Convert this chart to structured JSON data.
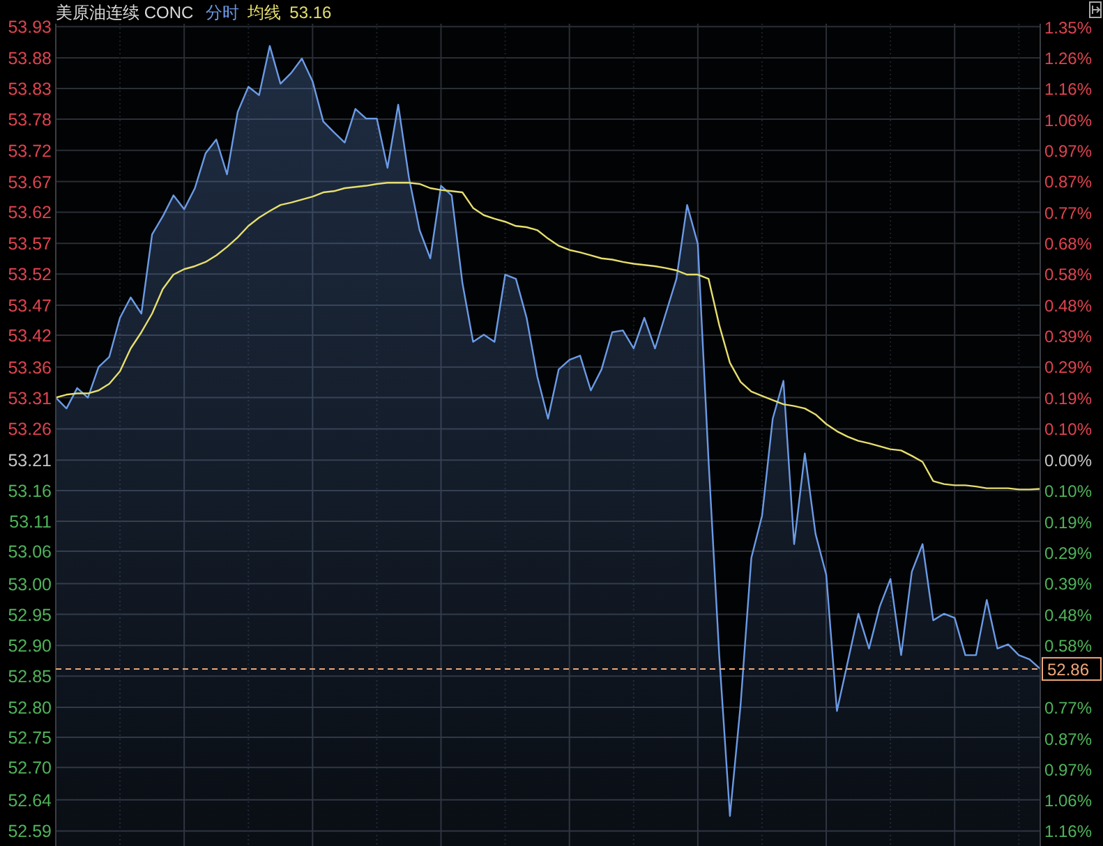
{
  "chart_data": {
    "type": "line",
    "title": "美原油连续 CONC",
    "categories": [
      null,
      null,
      null,
      null,
      null,
      null,
      null,
      null,
      null,
      null,
      null,
      null,
      null,
      null,
      null,
      null,
      null,
      null,
      null,
      null,
      null,
      null,
      null,
      null,
      null,
      null,
      null,
      null,
      null,
      null,
      null,
      null,
      null,
      null,
      null,
      null,
      null,
      null,
      null,
      null,
      null,
      null,
      null,
      null,
      null,
      null,
      null,
      null,
      null,
      null,
      null,
      null,
      null,
      null,
      null,
      null,
      null,
      null,
      null,
      null,
      null,
      null,
      null,
      null,
      null,
      null,
      null,
      null,
      null,
      null,
      null,
      null,
      null,
      null,
      null,
      null,
      null,
      null,
      null,
      null,
      null,
      null,
      null,
      null,
      null,
      null,
      null,
      null,
      null,
      null,
      null,
      null,
      null
    ],
    "series": [
      {
        "name": "分时",
        "type": "area",
        "color": "#6b9be6",
        "values": [
          53.312,
          53.294,
          53.328,
          53.312,
          53.363,
          53.38,
          53.445,
          53.479,
          53.452,
          53.584,
          53.614,
          53.649,
          53.626,
          53.661,
          53.719,
          53.742,
          53.684,
          53.788,
          53.83,
          53.816,
          53.898,
          53.835,
          53.853,
          53.877,
          53.839,
          53.772,
          53.754,
          53.737,
          53.793,
          53.777,
          53.777,
          53.695,
          53.8,
          53.679,
          53.591,
          53.544,
          53.665,
          53.649,
          53.503,
          53.405,
          53.417,
          53.405,
          53.517,
          53.51,
          53.445,
          53.347,
          53.277,
          53.359,
          53.375,
          53.382,
          53.324,
          53.359,
          53.421,
          53.424,
          53.394,
          53.445,
          53.394,
          53.452,
          53.51,
          53.633,
          53.568,
          53.208,
          52.883,
          52.615,
          52.801,
          53.045,
          53.115,
          53.277,
          53.34,
          53.068,
          53.219,
          53.085,
          53.017,
          52.79,
          52.871,
          52.952,
          52.894,
          52.964,
          53.01,
          52.883,
          53.022,
          53.068,
          52.941,
          52.952,
          52.945,
          52.883,
          52.883,
          52.975,
          52.894,
          52.901,
          52.883,
          52.876,
          52.86
        ]
      },
      {
        "name": "均线",
        "type": "line",
        "color": "#e6df6e",
        "values": [
          53.312,
          53.317,
          53.319,
          53.319,
          53.324,
          53.335,
          53.356,
          53.394,
          53.421,
          53.452,
          53.493,
          53.517,
          53.526,
          53.531,
          53.538,
          53.549,
          53.563,
          53.579,
          53.598,
          53.612,
          53.623,
          53.633,
          53.637,
          53.642,
          53.647,
          53.654,
          53.656,
          53.661,
          53.663,
          53.665,
          53.668,
          53.67,
          53.67,
          53.67,
          53.668,
          53.661,
          53.658,
          53.656,
          53.654,
          53.628,
          53.616,
          53.61,
          53.605,
          53.598,
          53.596,
          53.591,
          53.577,
          53.565,
          53.558,
          53.554,
          53.549,
          53.544,
          53.542,
          53.538,
          53.535,
          53.533,
          53.531,
          53.528,
          53.524,
          53.517,
          53.517,
          53.51,
          53.433,
          53.37,
          53.338,
          53.322,
          53.315,
          53.308,
          53.301,
          53.298,
          53.294,
          53.284,
          53.268,
          53.256,
          53.247,
          53.24,
          53.236,
          53.231,
          53.226,
          53.224,
          53.215,
          53.205,
          53.173,
          53.168,
          53.166,
          53.166,
          53.164,
          53.161,
          53.161,
          53.161,
          53.159,
          53.159,
          53.16
        ]
      }
    ],
    "annotations": [
      "53.16"
    ],
    "ylim": [
      52.565,
      53.935
    ],
    "yticks": [
      {
        "value": 53.93,
        "label": "53.93"
      },
      {
        "value": 53.878,
        "label": "53.88"
      },
      {
        "value": 53.827,
        "label": "53.83"
      },
      {
        "value": 53.776,
        "label": "53.78"
      },
      {
        "value": 53.724,
        "label": "53.72"
      },
      {
        "value": 53.672,
        "label": "53.67"
      },
      {
        "value": 53.621,
        "label": "53.62"
      },
      {
        "value": 53.569,
        "label": "53.57"
      },
      {
        "value": 53.518,
        "label": "53.52"
      },
      {
        "value": 53.466,
        "label": "53.47"
      },
      {
        "value": 53.416,
        "label": "53.42"
      },
      {
        "value": 53.363,
        "label": "53.36"
      },
      {
        "value": 53.312,
        "label": "53.31"
      },
      {
        "value": 53.26,
        "label": "53.26"
      },
      {
        "value": 53.208,
        "label": "53.21"
      },
      {
        "value": 53.157,
        "label": "53.16"
      },
      {
        "value": 53.106,
        "label": "53.11"
      },
      {
        "value": 53.056,
        "label": "53.06"
      },
      {
        "value": 53.002,
        "label": "53.00"
      },
      {
        "value": 52.951,
        "label": "52.95"
      },
      {
        "value": 52.899,
        "label": "52.90"
      },
      {
        "value": 52.848,
        "label": "52.85"
      },
      {
        "value": 52.796,
        "label": "52.80"
      },
      {
        "value": 52.746,
        "label": "52.75"
      },
      {
        "value": 52.696,
        "label": "52.70"
      },
      {
        "value": 52.642,
        "label": "52.64"
      },
      {
        "value": 52.59,
        "label": "52.59"
      }
    ],
    "y2lim": [
      -1.209,
      1.365
    ],
    "y2ticks": [
      {
        "value": 1.354,
        "label": "1.35%"
      },
      {
        "value": 1.259,
        "label": "1.26%"
      },
      {
        "value": 1.162,
        "label": "1.16%"
      },
      {
        "value": 1.064,
        "label": "1.06%"
      },
      {
        "value": 0.969,
        "label": "0.97%"
      },
      {
        "value": 0.872,
        "label": "0.87%"
      },
      {
        "value": 0.774,
        "label": "0.77%"
      },
      {
        "value": 0.678,
        "label": "0.68%"
      },
      {
        "value": 0.581,
        "label": "0.58%"
      },
      {
        "value": 0.484,
        "label": "0.48%"
      },
      {
        "value": 0.387,
        "label": "0.39%"
      },
      {
        "value": 0.291,
        "label": "0.29%"
      },
      {
        "value": 0.194,
        "label": "0.19%"
      },
      {
        "value": 0.097,
        "label": "0.10%"
      },
      {
        "value": 0,
        "label": "0.00%"
      },
      {
        "value": -0.097,
        "label": "0.10%"
      },
      {
        "value": -0.194,
        "label": "0.19%"
      },
      {
        "value": -0.291,
        "label": "0.29%"
      },
      {
        "value": -0.387,
        "label": "0.39%"
      },
      {
        "value": -0.484,
        "label": "0.48%"
      },
      {
        "value": -0.581,
        "label": "0.58%"
      },
      {
        "value": -0.678,
        "label": null
      },
      {
        "value": -0.774,
        "label": "0.77%"
      },
      {
        "value": -0.872,
        "label": "0.87%"
      },
      {
        "value": -0.969,
        "label": "0.97%"
      },
      {
        "value": -1.064,
        "label": "1.06%"
      },
      {
        "value": -1.162,
        "label": "1.16%"
      }
    ],
    "ref_lines": [
      {
        "axis": "y",
        "value": 52.86,
        "label": "52.86",
        "color": "#f0a878",
        "line_style": "dashed"
      }
    ],
    "grid": true,
    "legend": "top"
  }
}
